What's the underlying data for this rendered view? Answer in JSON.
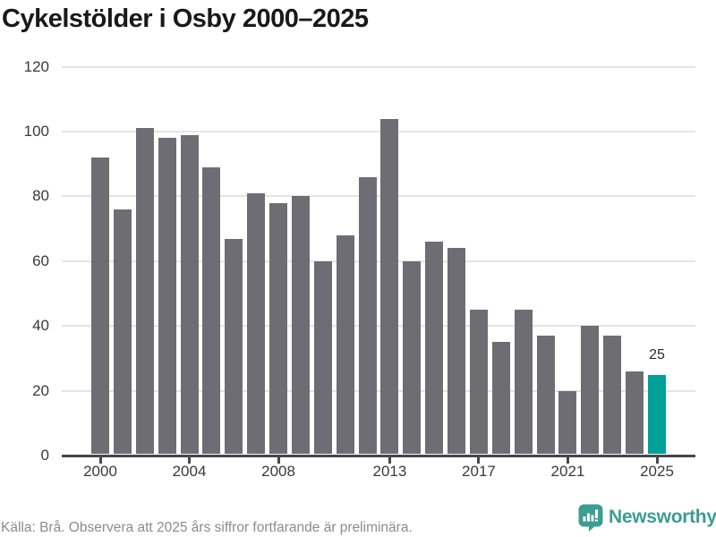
{
  "title": "Cykelstölder i Osby 2000–2025",
  "chart_data": {
    "type": "bar",
    "categories": [
      2000,
      2001,
      2002,
      2003,
      2004,
      2005,
      2006,
      2007,
      2008,
      2009,
      2010,
      2011,
      2012,
      2013,
      2014,
      2015,
      2016,
      2017,
      2018,
      2019,
      2020,
      2021,
      2022,
      2023,
      2024,
      2025
    ],
    "values": [
      92,
      76,
      101,
      98,
      99,
      89,
      67,
      81,
      78,
      80,
      60,
      68,
      86,
      104,
      60,
      66,
      64,
      45,
      35,
      45,
      37,
      20,
      40,
      37,
      26,
      25
    ],
    "title": "Cykelstölder i Osby 2000–2025",
    "xlabel": "",
    "ylabel": "",
    "ylim": [
      0,
      120
    ],
    "y_ticks": [
      0,
      20,
      40,
      60,
      80,
      100,
      120
    ],
    "x_tick_years": [
      2000,
      2004,
      2008,
      2013,
      2017,
      2021,
      2025
    ],
    "grid": true,
    "legend": "none",
    "bar_color": "#6e6d73",
    "highlight_color": "#00a098",
    "highlighted_category": 2025,
    "value_labels": [
      {
        "category": 2025,
        "text": "25"
      }
    ],
    "gridline_color": "#e4e4e6",
    "axis_color": "#47464b",
    "tick_label_color": "#3a3a3a"
  },
  "footer": {
    "source_text": "Källa: Brå. Observera att 2025 års siffror fortfarande är preliminära.",
    "brand": {
      "name": "Newsworthy",
      "color": "#3d9c94",
      "icon": "newsworthy-bar-chart-bubble-icon"
    }
  }
}
